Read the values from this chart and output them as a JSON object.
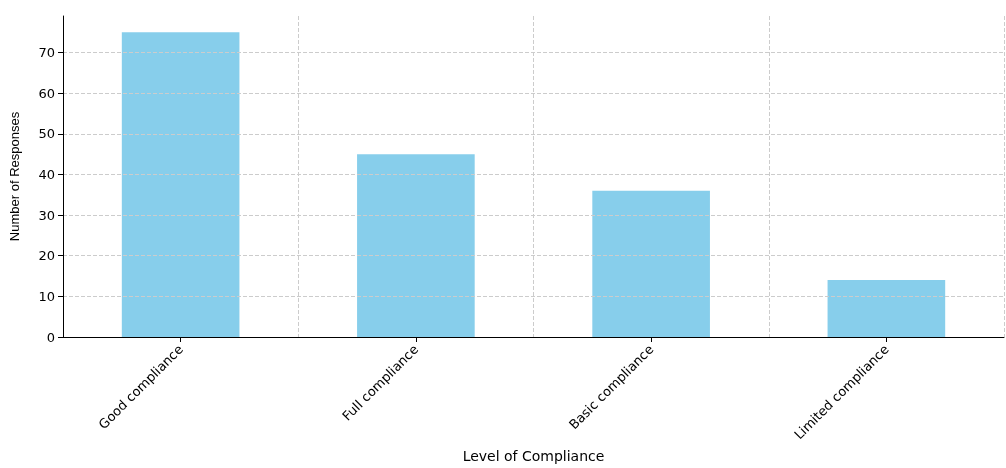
{
  "chart_data": {
    "type": "bar",
    "xlabel": "Level of Compliance",
    "ylabel": "Number of Responses",
    "categories": [
      "Good compliance",
      "Full compliance",
      "Basic compliance",
      "Limited compliance"
    ],
    "values": [
      75,
      45,
      36,
      14
    ],
    "color": "#87ceeb",
    "ylim": [
      0,
      79
    ],
    "yticks": [
      0,
      10,
      20,
      30,
      40,
      50,
      60,
      70
    ],
    "grid": true
  }
}
